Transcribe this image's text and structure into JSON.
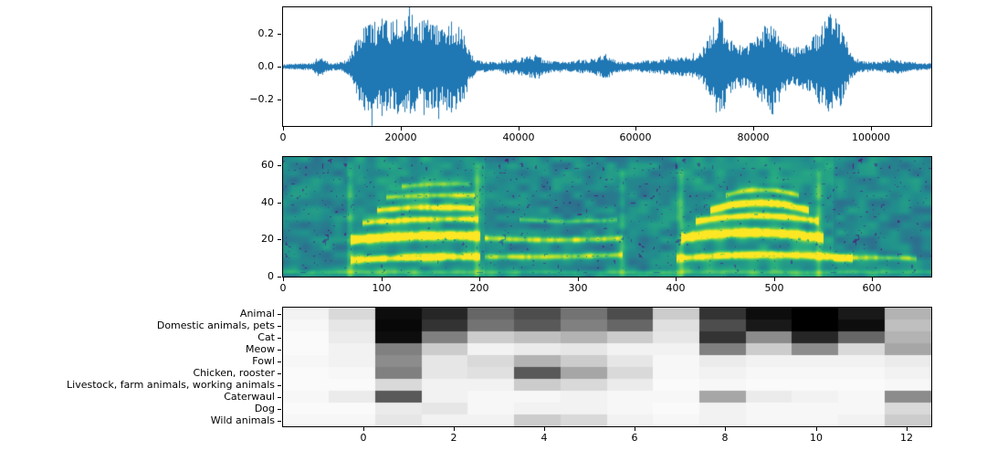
{
  "figure": {
    "background": "#ffffff"
  },
  "chart_data": [
    {
      "id": "waveform",
      "type": "line",
      "series_name": "audio-waveform",
      "color": "#1f77b4",
      "xlim": [
        0,
        110250
      ],
      "ylim": [
        -0.36,
        0.36
      ],
      "xtick_values": [
        0,
        20000,
        40000,
        60000,
        80000,
        100000
      ],
      "xtick_labels": [
        "0",
        "20000",
        "40000",
        "60000",
        "80000",
        "100000"
      ],
      "ytick_values": [
        -0.2,
        0.0,
        0.2
      ],
      "ytick_labels": [
        "−0.2",
        "0.0",
        "0.2"
      ],
      "env_step": 1000,
      "envelope": [
        0.015,
        0.015,
        0.018,
        0.02,
        0.02,
        0.022,
        0.07,
        0.04,
        0.025,
        0.025,
        0.03,
        0.05,
        0.12,
        0.22,
        0.28,
        0.3,
        0.26,
        0.33,
        0.26,
        0.3,
        0.28,
        0.3,
        0.33,
        0.26,
        0.3,
        0.32,
        0.28,
        0.24,
        0.28,
        0.31,
        0.27,
        0.18,
        0.08,
        0.045,
        0.035,
        0.03,
        0.03,
        0.035,
        0.05,
        0.04,
        0.05,
        0.06,
        0.07,
        0.075,
        0.05,
        0.04,
        0.035,
        0.03,
        0.03,
        0.035,
        0.04,
        0.04,
        0.045,
        0.05,
        0.07,
        0.08,
        0.05,
        0.035,
        0.03,
        0.03,
        0.03,
        0.035,
        0.04,
        0.04,
        0.045,
        0.05,
        0.05,
        0.055,
        0.06,
        0.06,
        0.07,
        0.09,
        0.16,
        0.25,
        0.3,
        0.28,
        0.18,
        0.14,
        0.13,
        0.14,
        0.16,
        0.2,
        0.26,
        0.3,
        0.24,
        0.16,
        0.13,
        0.12,
        0.13,
        0.15,
        0.18,
        0.22,
        0.28,
        0.32,
        0.3,
        0.22,
        0.12,
        0.06,
        0.04,
        0.035,
        0.03,
        0.03,
        0.035,
        0.04,
        0.05,
        0.04,
        0.03,
        0.03,
        0.025,
        0.02,
        0.02
      ]
    },
    {
      "id": "spectrogram",
      "type": "heatmap",
      "colormap": "viridis",
      "xlim": [
        0,
        660
      ],
      "ylim": [
        0,
        64.5
      ],
      "xtick_values": [
        0,
        100,
        200,
        300,
        400,
        500,
        600
      ],
      "xtick_labels": [
        "0",
        "100",
        "200",
        "300",
        "400",
        "500",
        "600"
      ],
      "ytick_values": [
        0,
        20,
        40,
        60
      ],
      "ytick_labels": [
        "0",
        "20",
        "40",
        "60"
      ],
      "background_level": 0.36,
      "noise_amount": 0.22,
      "lines": [
        {
          "t": [
            68,
            200
          ],
          "f": [
            20,
            22,
            22
          ],
          "amp": 1.0,
          "w": 1.6
        },
        {
          "t": [
            68,
            200
          ],
          "f": [
            9,
            10.5,
            11
          ],
          "amp": 0.75,
          "w": 1.4
        },
        {
          "t": [
            80,
            198
          ],
          "f": [
            29,
            31,
            31
          ],
          "amp": 0.55,
          "w": 1.2
        },
        {
          "t": [
            95,
            195
          ],
          "f": [
            36,
            37.5,
            37
          ],
          "amp": 0.6,
          "w": 1.2
        },
        {
          "t": [
            105,
            195
          ],
          "f": [
            43,
            44,
            44
          ],
          "amp": 0.45,
          "w": 1.1
        },
        {
          "t": [
            120,
            190
          ],
          "f": [
            49,
            50,
            50
          ],
          "amp": 0.3,
          "w": 1.0
        },
        {
          "t": [
            205,
            345
          ],
          "f": [
            21,
            20,
            21
          ],
          "amp": 0.5,
          "w": 1.2
        },
        {
          "t": [
            205,
            345
          ],
          "f": [
            11,
            11,
            12
          ],
          "amp": 0.45,
          "w": 1.2
        },
        {
          "t": [
            240,
            340
          ],
          "f": [
            31,
            30,
            31
          ],
          "amp": 0.3,
          "w": 1.0
        },
        {
          "t": [
            405,
            550
          ],
          "f": [
            21,
            24,
            21
          ],
          "amp": 1.0,
          "w": 1.7
        },
        {
          "t": [
            400,
            580
          ],
          "f": [
            10,
            12,
            10
          ],
          "amp": 0.7,
          "w": 1.4
        },
        {
          "t": [
            420,
            545
          ],
          "f": [
            30,
            33,
            30
          ],
          "amp": 0.65,
          "w": 1.3
        },
        {
          "t": [
            435,
            535
          ],
          "f": [
            36,
            40,
            36
          ],
          "amp": 0.75,
          "w": 1.4
        },
        {
          "t": [
            450,
            525
          ],
          "f": [
            44,
            47,
            44
          ],
          "amp": 0.45,
          "w": 1.1
        },
        {
          "t": [
            560,
            645
          ],
          "f": [
            10,
            10.5,
            10
          ],
          "amp": 0.4,
          "w": 1.1
        },
        {
          "t": [
            0,
            660
          ],
          "f": [
            2.5,
            2.5,
            2.5
          ],
          "amp": 0.2,
          "w": 1.0
        }
      ],
      "vlines": [
        {
          "t": 68,
          "amp": 0.4
        },
        {
          "t": 197,
          "amp": 0.5
        },
        {
          "t": 345,
          "amp": 0.35
        },
        {
          "t": 405,
          "amp": 0.45
        },
        {
          "t": 545,
          "amp": 0.45
        }
      ],
      "lifts": [
        {
          "t": [
            65,
            205
          ],
          "amp": 0.06
        },
        {
          "t": [
            400,
            560
          ],
          "amp": 0.06
        }
      ]
    },
    {
      "id": "class-scores",
      "type": "heatmap",
      "colormap": "gray_r",
      "x_extent": [
        -1.77,
        12.55
      ],
      "xtick_values": [
        0,
        2,
        4,
        6,
        8,
        10,
        12
      ],
      "xtick_labels": [
        "0",
        "2",
        "4",
        "6",
        "8",
        "10",
        "12"
      ],
      "classes": [
        "Animal",
        "Domestic animals, pets",
        "Cat",
        "Meow",
        "Fowl",
        "Chicken, rooster",
        "Livestock, farm animals, working animals",
        "Caterwaul",
        "Dog",
        "Wild animals"
      ],
      "values": [
        [
          0.05,
          0.15,
          0.95,
          0.85,
          0.6,
          0.7,
          0.55,
          0.7,
          0.2,
          0.8,
          0.95,
          1.0,
          0.9,
          0.3
        ],
        [
          0.03,
          0.1,
          0.97,
          0.8,
          0.55,
          0.65,
          0.5,
          0.6,
          0.12,
          0.7,
          0.9,
          1.0,
          0.95,
          0.25
        ],
        [
          0.02,
          0.08,
          0.95,
          0.5,
          0.2,
          0.25,
          0.3,
          0.2,
          0.1,
          0.8,
          0.45,
          0.85,
          0.6,
          0.3
        ],
        [
          0.02,
          0.05,
          0.5,
          0.2,
          0.05,
          0.08,
          0.1,
          0.05,
          0.05,
          0.5,
          0.2,
          0.45,
          0.15,
          0.35
        ],
        [
          0.03,
          0.05,
          0.45,
          0.1,
          0.15,
          0.3,
          0.2,
          0.1,
          0.03,
          0.08,
          0.05,
          0.05,
          0.05,
          0.08
        ],
        [
          0.02,
          0.03,
          0.5,
          0.1,
          0.12,
          0.65,
          0.35,
          0.15,
          0.03,
          0.05,
          0.03,
          0.03,
          0.03,
          0.05
        ],
        [
          0.02,
          0.02,
          0.15,
          0.05,
          0.05,
          0.2,
          0.15,
          0.08,
          0.02,
          0.03,
          0.02,
          0.02,
          0.02,
          0.03
        ],
        [
          0.03,
          0.08,
          0.65,
          0.05,
          0.03,
          0.03,
          0.05,
          0.03,
          0.03,
          0.35,
          0.08,
          0.05,
          0.03,
          0.45
        ],
        [
          0.02,
          0.02,
          0.08,
          0.1,
          0.03,
          0.05,
          0.05,
          0.03,
          0.02,
          0.05,
          0.03,
          0.03,
          0.03,
          0.15
        ],
        [
          0.03,
          0.03,
          0.1,
          0.05,
          0.05,
          0.2,
          0.15,
          0.05,
          0.03,
          0.05,
          0.03,
          0.03,
          0.05,
          0.2
        ]
      ]
    }
  ]
}
